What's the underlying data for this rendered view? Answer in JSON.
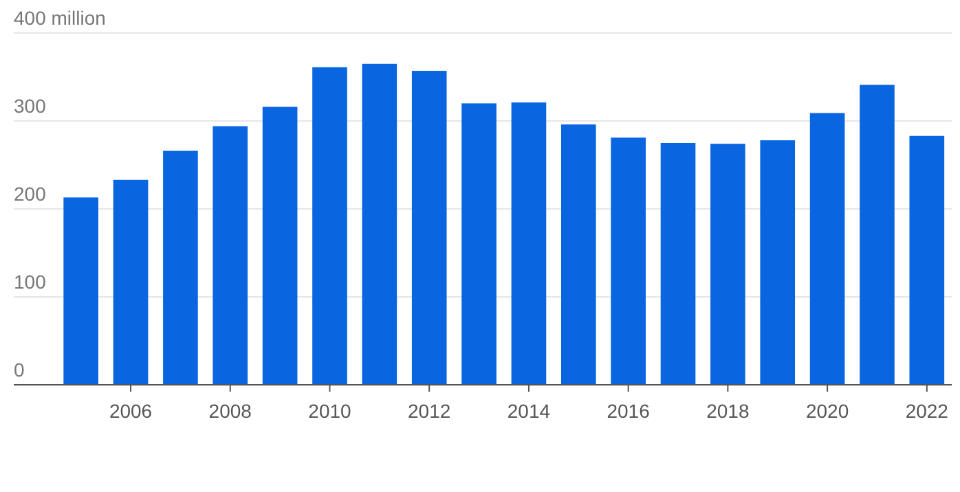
{
  "chart_data": {
    "type": "bar",
    "x": [
      2005,
      2006,
      2007,
      2008,
      2009,
      2010,
      2011,
      2012,
      2013,
      2014,
      2015,
      2016,
      2017,
      2018,
      2019,
      2020,
      2021,
      2022
    ],
    "values": [
      213,
      233,
      266,
      294,
      316,
      361,
      365,
      357,
      320,
      321,
      296,
      281,
      275,
      274,
      278,
      309,
      341,
      283
    ],
    "color": "#0a66e0",
    "xlim": [
      2003.65,
      2022.5
    ],
    "xticks": [
      2006,
      2008,
      2010,
      2012,
      2014,
      2016,
      2018,
      2020,
      2022
    ],
    "ylim": [
      0,
      400
    ],
    "yticks": [
      0,
      100,
      200,
      300,
      {
        "value": 400,
        "label": "400 million"
      }
    ],
    "grid": "y"
  }
}
